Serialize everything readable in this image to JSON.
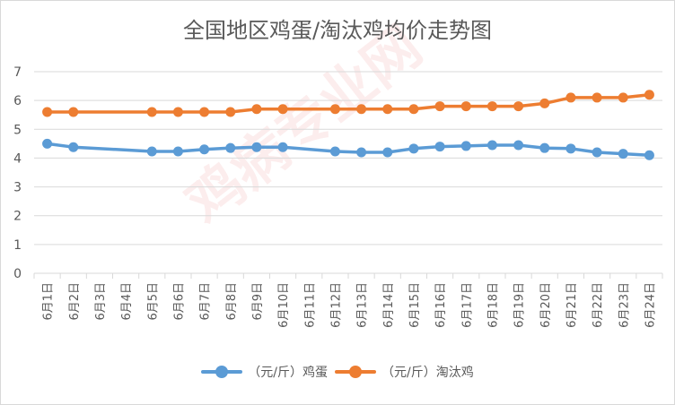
{
  "chart_data": {
    "type": "line",
    "title": "全国地区鸡蛋/淘汰鸡均价走势图",
    "categories": [
      "6月1日",
      "6月2日",
      "6月3日",
      "6月4日",
      "6月5日",
      "6月6日",
      "6月7日",
      "6月8日",
      "6月9日",
      "6月10日",
      "6月11日",
      "6月12日",
      "6月13日",
      "6月14日",
      "6月15日",
      "6月16日",
      "6月17日",
      "6月18日",
      "6月19日",
      "6月20日",
      "6月21日",
      "6月22日",
      "6月23日",
      "6月24日"
    ],
    "series": [
      {
        "name": "（元/斤）鸡蛋",
        "color": "#5b9bd5",
        "values": [
          4.5,
          4.38,
          null,
          null,
          4.23,
          4.23,
          4.3,
          4.35,
          4.38,
          4.38,
          null,
          4.23,
          4.2,
          4.2,
          4.33,
          4.4,
          4.42,
          4.45,
          4.45,
          4.35,
          4.33,
          4.2,
          4.15,
          4.1
        ]
      },
      {
        "name": "（元/斤）淘汰鸡",
        "color": "#ed7d31",
        "values": [
          5.6,
          5.6,
          null,
          null,
          5.6,
          5.6,
          5.6,
          5.6,
          5.7,
          5.7,
          null,
          5.7,
          5.7,
          5.7,
          5.7,
          5.8,
          5.8,
          5.8,
          5.8,
          5.9,
          6.1,
          6.1,
          6.1,
          6.2
        ]
      }
    ],
    "yticks": [
      "0",
      "1",
      "2",
      "3",
      "4",
      "5",
      "6",
      "7"
    ],
    "ylim": [
      0,
      7
    ],
    "grid": true,
    "legend_position": "bottom"
  },
  "watermark": "鸡病专业网"
}
